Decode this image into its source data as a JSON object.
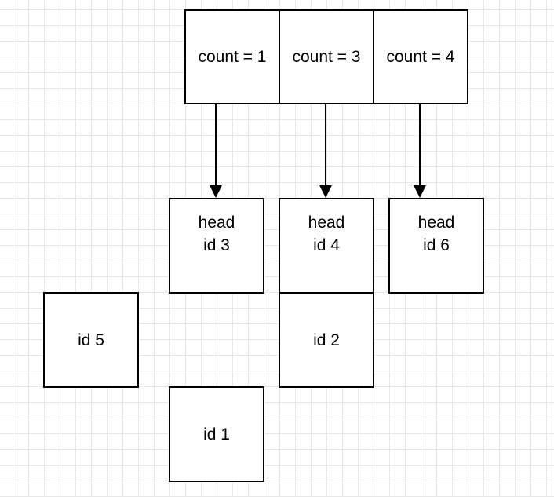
{
  "counts": {
    "cells": [
      {
        "label": "count = 1"
      },
      {
        "label": "count = 3"
      },
      {
        "label": "count = 4"
      }
    ]
  },
  "heads": [
    {
      "line1": "head",
      "line2": "id 3"
    },
    {
      "line1": "head",
      "line2": "id 4"
    },
    {
      "line1": "head",
      "line2": "id 6"
    }
  ],
  "nodes": {
    "id5": "id 5",
    "id2": "id 2",
    "id1": "id 1"
  },
  "colors": {
    "stroke": "#000000",
    "grid": "#e8e8e8",
    "background": "#ffffff"
  }
}
